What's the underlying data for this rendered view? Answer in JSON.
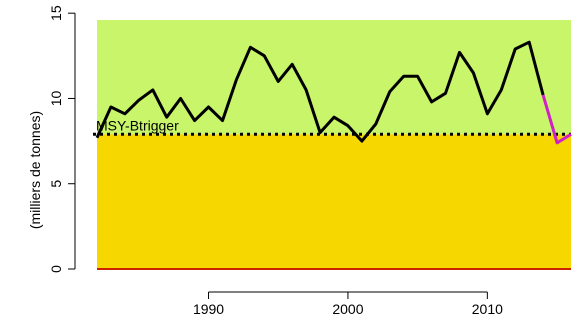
{
  "chart_data": {
    "type": "line",
    "title": "",
    "xlabel": "",
    "ylabel": "(milliers de tonnes)",
    "xlim": [
      1982,
      2016
    ],
    "ylim": [
      0,
      14.6
    ],
    "x_ticks": [
      1990,
      2000,
      2010
    ],
    "y_ticks": [
      0,
      5,
      10,
      15
    ],
    "grid": false,
    "colors": {
      "zone_above": "#c8f56a",
      "zone_below": "#f7d700",
      "zero_line": "#cc2200",
      "series_main": "#000000",
      "series_projection": "#d020c8",
      "reference_line": "#000000"
    },
    "reference": {
      "label": "MSY-Btrigger",
      "value": 7.9
    },
    "series": [
      {
        "x": [
          1982,
          1983,
          1984,
          1985,
          1986,
          1987,
          1988,
          1989,
          1990,
          1991,
          1992,
          1993,
          1994,
          1995,
          1996,
          1997,
          1998,
          1999,
          2000,
          2001,
          2002,
          2003,
          2004,
          2005,
          2006,
          2007,
          2008,
          2009,
          2010,
          2011,
          2012,
          2013,
          2014
        ],
        "values": [
          7.7,
          9.5,
          9.1,
          9.9,
          10.5,
          8.9,
          10.0,
          8.7,
          9.5,
          8.7,
          11.1,
          13.0,
          12.5,
          11.0,
          12.0,
          10.5,
          8.0,
          8.9,
          8.4,
          7.5,
          8.5,
          10.4,
          11.3,
          11.3,
          9.8,
          10.3,
          12.7,
          11.5,
          9.1,
          10.5,
          12.9,
          13.3,
          10.2
        ]
      },
      {
        "x": [
          2014,
          2015,
          2016
        ],
        "values": [
          10.2,
          7.4,
          7.9
        ]
      }
    ]
  }
}
